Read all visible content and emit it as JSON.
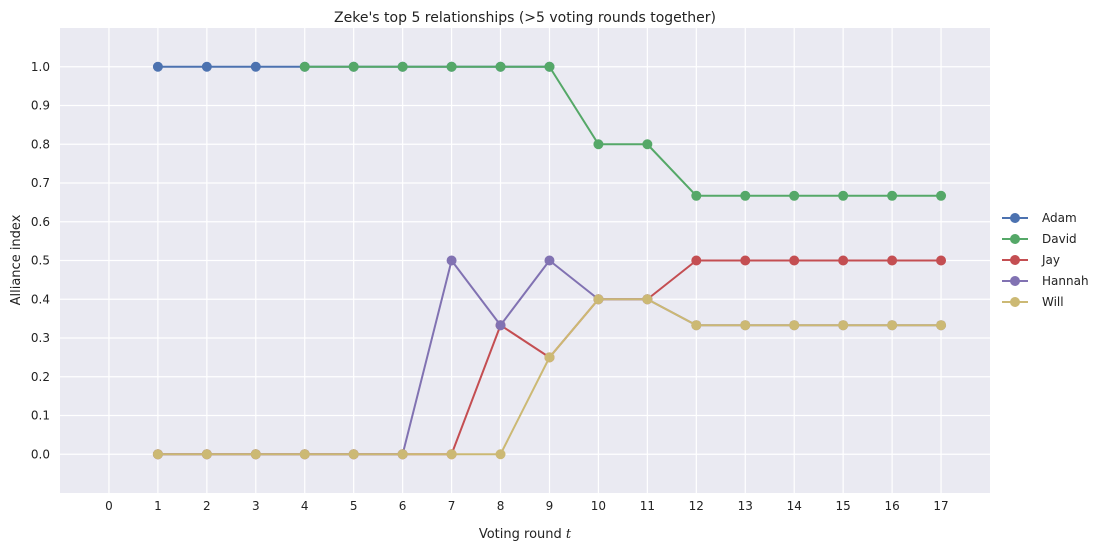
{
  "chart_data": {
    "type": "line",
    "title": "Zeke's top 5 relationships (>5 voting rounds together)",
    "xlabel": "Voting round",
    "xlabel_var": "t",
    "ylabel": "Alliance index",
    "xlim": [
      -1,
      18
    ],
    "ylim": [
      -0.1,
      1.1
    ],
    "xticks": [
      0,
      1,
      2,
      3,
      4,
      5,
      6,
      7,
      8,
      9,
      10,
      11,
      12,
      13,
      14,
      15,
      16,
      17
    ],
    "yticks": [
      "0.0",
      "0.1",
      "0.2",
      "0.3",
      "0.4",
      "0.5",
      "0.6",
      "0.7",
      "0.8",
      "0.9",
      "1.0"
    ],
    "grid": true,
    "legend_position": "right (outside plot)",
    "series": [
      {
        "name": "Adam",
        "color": "#4C72B0",
        "x": [
          1,
          2,
          3,
          4,
          5,
          6,
          7,
          8,
          9
        ],
        "y": [
          1.0,
          1.0,
          1.0,
          1.0,
          1.0,
          1.0,
          1.0,
          1.0,
          1.0
        ]
      },
      {
        "name": "David",
        "color": "#55A868",
        "x": [
          4,
          5,
          6,
          7,
          8,
          9,
          10,
          11,
          12,
          13,
          14,
          15,
          16,
          17
        ],
        "y": [
          1.0,
          1.0,
          1.0,
          1.0,
          1.0,
          1.0,
          0.8,
          0.8,
          0.667,
          0.667,
          0.667,
          0.667,
          0.667,
          0.667
        ]
      },
      {
        "name": "Jay",
        "color": "#C44E52",
        "x": [
          1,
          2,
          3,
          4,
          5,
          6,
          7,
          8,
          9,
          10,
          11,
          12,
          13,
          14,
          15,
          16,
          17
        ],
        "y": [
          0.0,
          0.0,
          0.0,
          0.0,
          0.0,
          0.0,
          0.0,
          0.333,
          0.25,
          0.4,
          0.4,
          0.5,
          0.5,
          0.5,
          0.5,
          0.5,
          0.5
        ]
      },
      {
        "name": "Hannah",
        "color": "#8172B2",
        "x": [
          1,
          2,
          3,
          4,
          5,
          6,
          7,
          8,
          9,
          10,
          11,
          12,
          13,
          14,
          15,
          16,
          17
        ],
        "y": [
          0.0,
          0.0,
          0.0,
          0.0,
          0.0,
          0.0,
          0.5,
          0.333,
          0.5,
          0.4,
          0.4,
          0.333,
          0.333,
          0.333,
          0.333,
          0.333,
          0.333
        ]
      },
      {
        "name": "Will",
        "color": "#CCB974",
        "x": [
          1,
          2,
          3,
          4,
          5,
          6,
          7,
          8,
          9,
          10,
          11,
          12,
          13,
          14,
          15,
          16,
          17
        ],
        "y": [
          0.0,
          0.0,
          0.0,
          0.0,
          0.0,
          0.0,
          0.0,
          0.0,
          0.25,
          0.4,
          0.4,
          0.333,
          0.333,
          0.333,
          0.333,
          0.333,
          0.333
        ]
      }
    ],
    "colors": {
      "plot_background": "#EAEAF2",
      "grid": "#FFFFFF"
    }
  }
}
